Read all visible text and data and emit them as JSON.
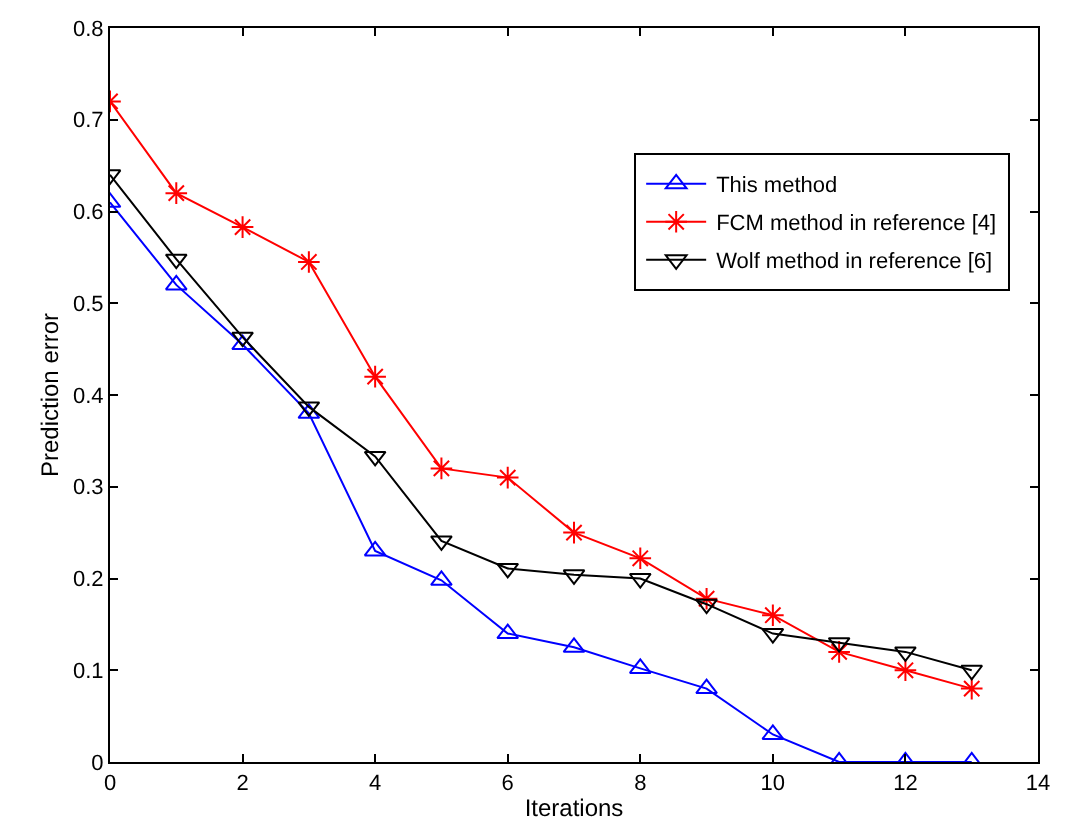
{
  "chart_data": {
    "type": "line",
    "xlabel": "Iterations",
    "ylabel": "Prediction error",
    "x": [
      0,
      1,
      2,
      3,
      4,
      5,
      6,
      7,
      8,
      9,
      10,
      11,
      12,
      13
    ],
    "series": [
      {
        "name": "This method",
        "color": "#0000ff",
        "marker": "triangle",
        "values": [
          0.61,
          0.52,
          0.455,
          0.38,
          0.23,
          0.198,
          0.14,
          0.125,
          0.102,
          0.08,
          0.03,
          0,
          0,
          0
        ]
      },
      {
        "name": "FCM method in reference [4]",
        "color": "#ff0000",
        "marker": "cross",
        "values": [
          0.72,
          0.62,
          0.583,
          0.545,
          0.42,
          0.32,
          0.31,
          0.25,
          0.222,
          0.178,
          0.16,
          0.12,
          0.1,
          0.08
        ]
      },
      {
        "name": "Wolf method in reference [6]",
        "color": "#000000",
        "marker": "triangle-down",
        "values": [
          0.64,
          0.548,
          0.463,
          0.387,
          0.333,
          0.241,
          0.211,
          0.204,
          0.2,
          0.172,
          0.14,
          0.13,
          0.12,
          0.1
        ]
      }
    ],
    "xlim": [
      0,
      14
    ],
    "xticks": [
      0,
      2,
      4,
      6,
      8,
      10,
      12,
      14
    ],
    "ylim": [
      0,
      0.8
    ],
    "yticks": [
      0,
      0.1,
      0.2,
      0.3,
      0.4,
      0.5,
      0.6,
      0.7,
      0.8
    ],
    "grid": false,
    "legend": "top right",
    "line_style": "solid"
  }
}
